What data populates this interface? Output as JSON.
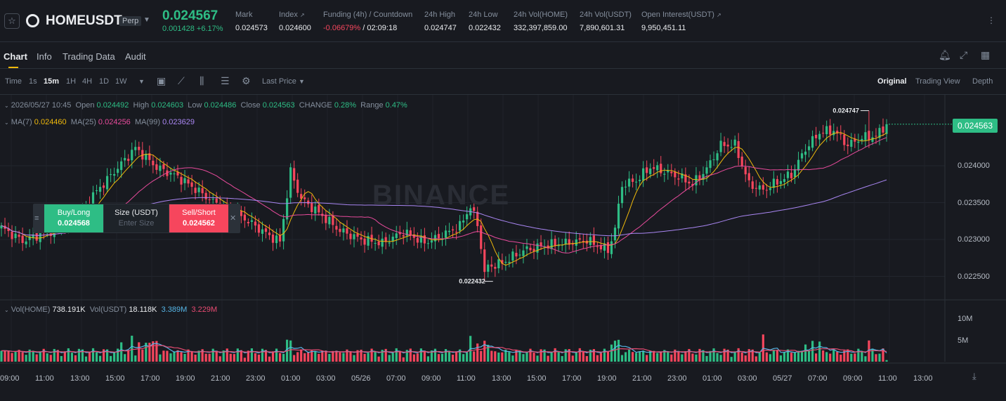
{
  "header": {
    "symbol": "HOMEUSDT",
    "contract_type": "Perp",
    "last_price": "0.024567",
    "change": "0.001428 +6.17%",
    "stats": [
      {
        "label": "Mark",
        "value": "0.024573"
      },
      {
        "label": "Index",
        "value": "0.024600"
      },
      {
        "label": "Funding (4h) / Countdown",
        "value_rate": "-0.06679%",
        "value_countdown": "02:09:18"
      },
      {
        "label": "24h High",
        "value": "0.024747"
      },
      {
        "label": "24h Low",
        "value": "0.022432"
      },
      {
        "label": "24h Vol(HOME)",
        "value": "332,397,859.00"
      },
      {
        "label": "24h Vol(USDT)",
        "value": "7,890,601.31"
      },
      {
        "label": "Open Interest(USDT)",
        "value": "9,950,451.11"
      }
    ]
  },
  "tabs": [
    "Chart",
    "Info",
    "Trading Data",
    "Audit"
  ],
  "toolbar": {
    "time_label": "Time",
    "intervals": [
      "1s",
      "15m",
      "1H",
      "4H",
      "1D",
      "1W"
    ],
    "active_interval": "15m",
    "price_source": "Last Price",
    "views": [
      "Original",
      "Trading View",
      "Depth"
    ],
    "active_view": "Original"
  },
  "ohlc": {
    "date": "2026/05/27 10:45",
    "open_label": "Open",
    "open": "0.024492",
    "high_label": "High",
    "high": "0.024603",
    "low_label": "Low",
    "low": "0.024486",
    "close_label": "Close",
    "close": "0.024563",
    "change_label": "CHANGE",
    "change": "0.28%",
    "range_label": "Range",
    "range": "0.47%"
  },
  "ma": {
    "ma7_label": "MA(7)",
    "ma7": "0.024460",
    "ma25_label": "MA(25)",
    "ma25": "0.024256",
    "ma99_label": "MA(99)",
    "ma99": "0.023629"
  },
  "volume": {
    "vol_home_label": "Vol(HOME)",
    "vol_home": "738.191K",
    "vol_usdt_label": "Vol(USDT)",
    "vol_usdt": "18.118K",
    "ma1": "3.389M",
    "ma2": "3.229M"
  },
  "order_widget": {
    "buy_label": "Buy/Long",
    "buy_price": "0.024568",
    "size_label": "Size (USDT)",
    "size_placeholder": "Enter Size",
    "sell_label": "Sell/Short",
    "sell_price": "0.024562"
  },
  "watermark": "BINANCE",
  "colors": {
    "up": "#2ebd85",
    "down": "#f6465d",
    "accent": "#f0b90b",
    "ma7": "#f0b90b",
    "ma25": "#e84b9c",
    "ma99": "#a986f2"
  },
  "chart_data": {
    "type": "candlestick",
    "price_axis_ticks": [
      "0.024000",
      "0.023500",
      "0.023000",
      "0.022500"
    ],
    "volume_axis_ticks": [
      "10M",
      "5M"
    ],
    "time_axis_ticks": [
      "09:00",
      "11:00",
      "13:00",
      "15:00",
      "17:00",
      "19:00",
      "21:00",
      "23:00",
      "01:00",
      "03:00",
      "05/26",
      "07:00",
      "09:00",
      "11:00",
      "13:00",
      "15:00",
      "17:00",
      "19:00",
      "21:00",
      "23:00",
      "01:00",
      "03:00",
      "05/27",
      "07:00",
      "09:00",
      "11:00",
      "13:00"
    ],
    "current_price": "0.024563",
    "high_marker": "0.024747",
    "low_marker": "0.022432",
    "close_keypoints": [
      [
        0,
        0.02316
      ],
      [
        6,
        0.02298
      ],
      [
        14,
        0.02312
      ],
      [
        22,
        0.02328
      ],
      [
        26,
        0.0236
      ],
      [
        32,
        0.02392
      ],
      [
        38,
        0.02424
      ],
      [
        44,
        0.02398
      ],
      [
        50,
        0.02385
      ],
      [
        56,
        0.02365
      ],
      [
        62,
        0.02345
      ],
      [
        66,
        0.02338
      ],
      [
        72,
        0.02318
      ],
      [
        76,
        0.02305
      ],
      [
        79,
        0.02297
      ],
      [
        82,
        0.02392
      ],
      [
        85,
        0.02355
      ],
      [
        90,
        0.02336
      ],
      [
        96,
        0.02312
      ],
      [
        102,
        0.023
      ],
      [
        108,
        0.02295
      ],
      [
        114,
        0.0231
      ],
      [
        120,
        0.02296
      ],
      [
        124,
        0.02303
      ],
      [
        130,
        0.02318
      ],
      [
        133,
        0.02345
      ],
      [
        135,
        0.0232
      ],
      [
        137,
        0.02262
      ],
      [
        142,
        0.02268
      ],
      [
        148,
        0.02285
      ],
      [
        154,
        0.02292
      ],
      [
        160,
        0.02295
      ],
      [
        166,
        0.02299
      ],
      [
        172,
        0.02285
      ],
      [
        174,
        0.02315
      ],
      [
        176,
        0.02374
      ],
      [
        180,
        0.0238
      ],
      [
        184,
        0.02398
      ],
      [
        188,
        0.02392
      ],
      [
        192,
        0.02385
      ],
      [
        196,
        0.02375
      ],
      [
        200,
        0.02396
      ],
      [
        204,
        0.02428
      ],
      [
        208,
        0.02428
      ],
      [
        212,
        0.02375
      ],
      [
        216,
        0.02367
      ],
      [
        220,
        0.02378
      ],
      [
        224,
        0.02388
      ],
      [
        228,
        0.02423
      ],
      [
        232,
        0.02445
      ],
      [
        236,
        0.02448
      ],
      [
        240,
        0.02428
      ],
      [
        244,
        0.02438
      ],
      [
        248,
        0.0244
      ],
      [
        251,
        0.02456
      ]
    ]
  }
}
